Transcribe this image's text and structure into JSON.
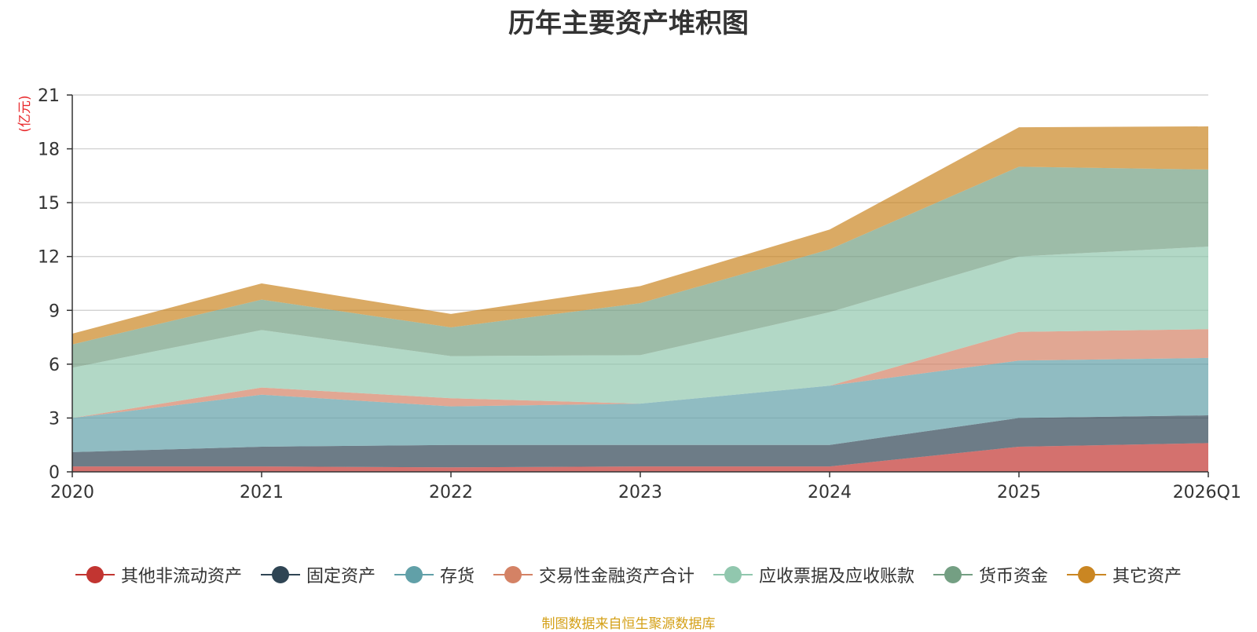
{
  "chart_data": {
    "type": "area",
    "stacked": true,
    "title": "历年主要资产堆积图",
    "ylabel": "(亿元)",
    "xlabel": "",
    "categories": [
      "2020",
      "2021",
      "2022",
      "2023",
      "2024",
      "2025",
      "2026Q1"
    ],
    "ylim": [
      0,
      21
    ],
    "yticks": [
      0,
      3,
      6,
      9,
      12,
      15,
      18,
      21
    ],
    "grid": true,
    "legend_position": "bottom",
    "series": [
      {
        "name": "其他非流动资产",
        "color": "#c23531",
        "values": [
          0.3,
          0.3,
          0.25,
          0.3,
          0.3,
          1.4,
          1.6
        ]
      },
      {
        "name": "固定资产",
        "color": "#2f4554",
        "values": [
          0.8,
          1.1,
          1.25,
          1.2,
          1.2,
          1.6,
          1.55
        ]
      },
      {
        "name": "存货",
        "color": "#61a0a8",
        "values": [
          1.9,
          2.9,
          2.15,
          2.3,
          3.3,
          3.2,
          3.2
        ]
      },
      {
        "name": "交易性金融资产合计",
        "color": "#d48265",
        "values": [
          0.0,
          0.4,
          0.45,
          0.0,
          0.0,
          1.6,
          1.6
        ]
      },
      {
        "name": "应收票据及应收账款",
        "color": "#91c7ae",
        "values": [
          2.8,
          3.2,
          2.35,
          2.7,
          4.1,
          4.2,
          4.6
        ]
      },
      {
        "name": "货币资金",
        "color": "#749f83",
        "values": [
          1.3,
          1.7,
          1.6,
          2.9,
          3.5,
          5.0,
          4.3
        ]
      },
      {
        "name": "其它资产",
        "color": "#ca8622",
        "values": [
          0.6,
          0.9,
          0.75,
          0.95,
          1.1,
          2.2,
          2.4
        ]
      }
    ]
  },
  "footer": "制图数据来自恒生聚源数据库"
}
